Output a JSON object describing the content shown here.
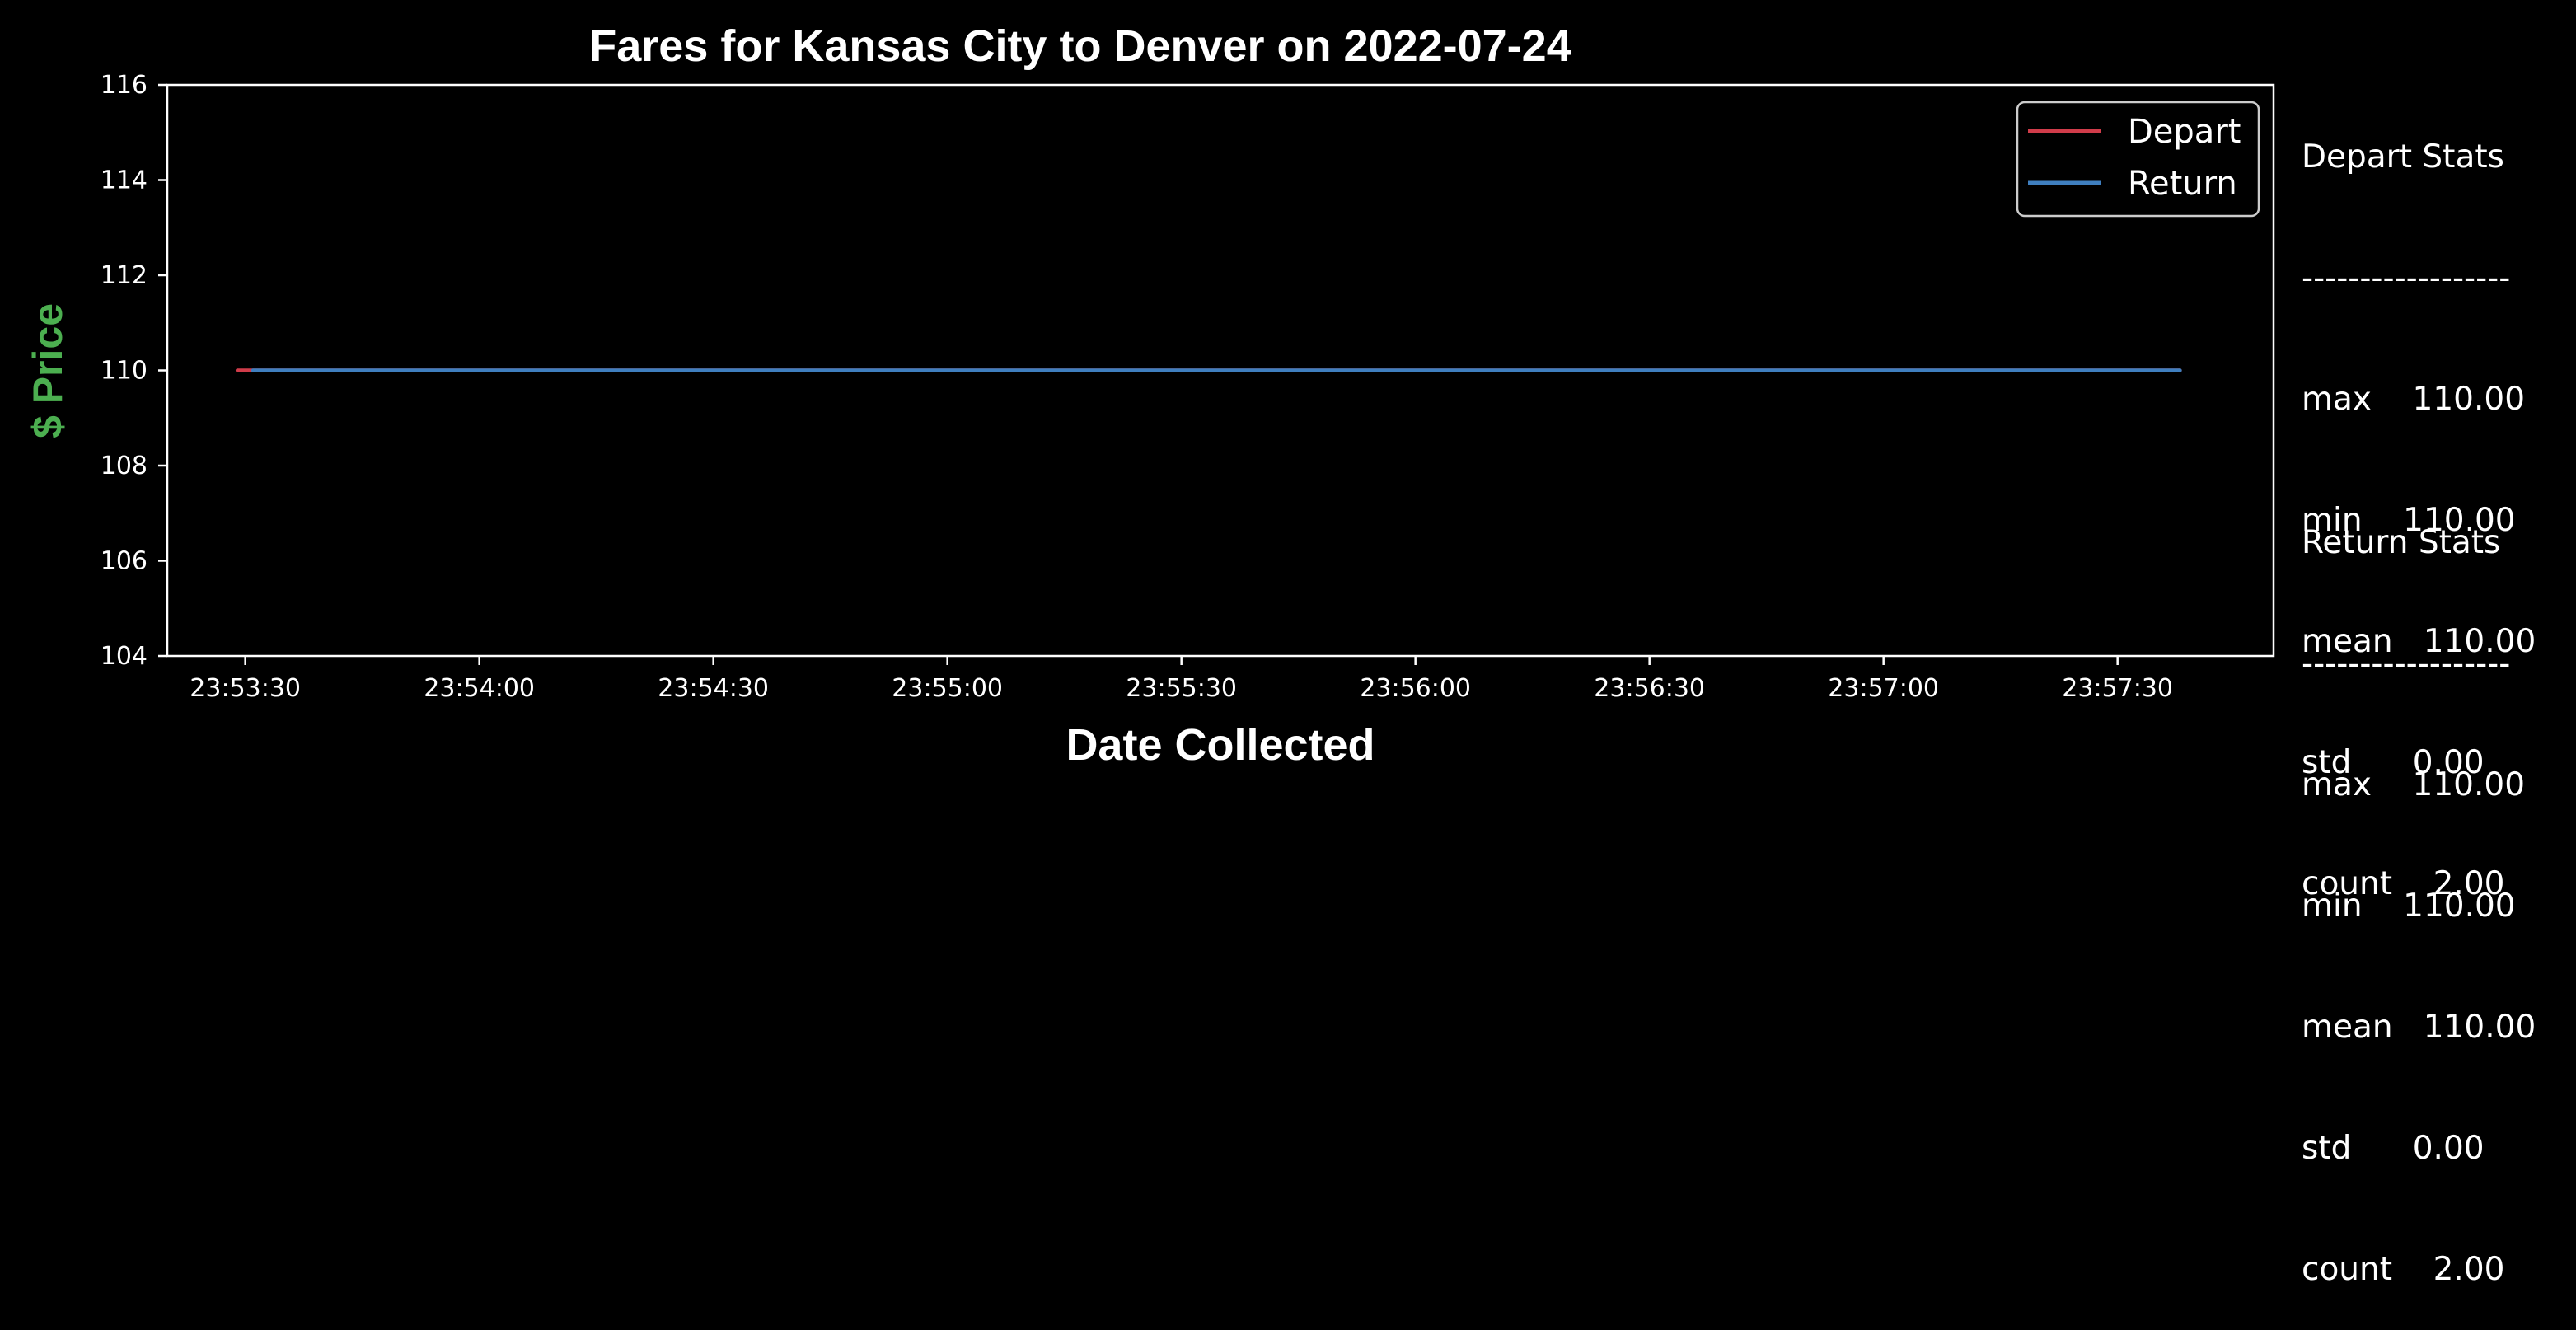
{
  "chart_data": {
    "type": "line",
    "title": "Fares for Kansas City to Denver on 2022-07-24",
    "xlabel": "Date Collected",
    "ylabel": "$ Price",
    "ylim": [
      104,
      116
    ],
    "xlim": [
      "23:53:20",
      "23:57:50"
    ],
    "y_ticks": [
      "104",
      "106",
      "108",
      "110",
      "112",
      "114",
      "116"
    ],
    "x_ticks": [
      "23:53:30",
      "23:54:00",
      "23:54:30",
      "23:55:00",
      "23:55:30",
      "23:56:00",
      "23:56:30",
      "23:57:00",
      "23:57:30"
    ],
    "grid": false,
    "legend_position": "top-right",
    "series": [
      {
        "name": "Depart",
        "color": "#d03c4a",
        "points": [
          {
            "x": "23:53:29",
            "y": 110.0
          },
          {
            "x": "23:57:38",
            "y": 110.0
          }
        ]
      },
      {
        "name": "Return",
        "color": "#3f7fbf",
        "points": [
          {
            "x": "23:53:31",
            "y": 110.0
          },
          {
            "x": "23:57:38",
            "y": 110.0
          }
        ]
      }
    ]
  },
  "stats": {
    "depart": {
      "header": "Depart Stats",
      "separator": "------------------",
      "rows": [
        "max    110.00",
        "min    110.00",
        "mean   110.00",
        "std      0.00",
        "count    2.00"
      ]
    },
    "return": {
      "header": "Return Stats",
      "separator": "------------------",
      "rows": [
        "max    110.00",
        "min    110.00",
        "mean   110.00",
        "std      0.00",
        "count    2.00"
      ]
    }
  }
}
